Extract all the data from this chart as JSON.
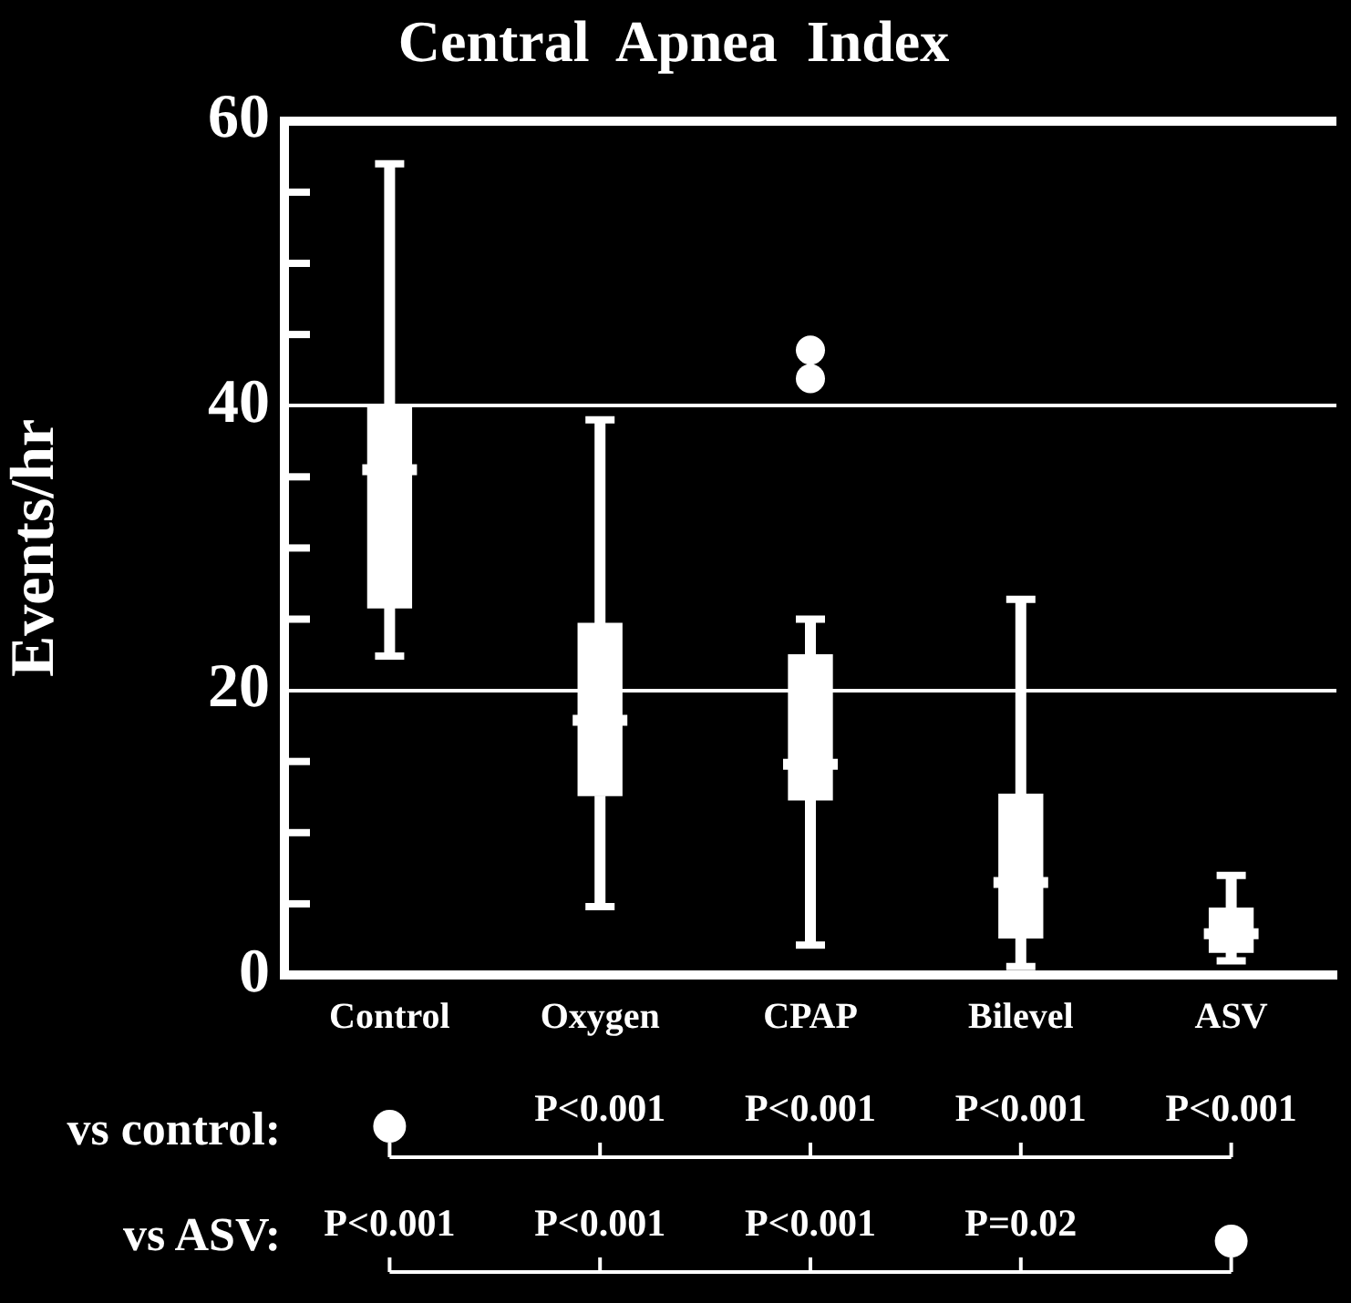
{
  "chart_data": {
    "type": "box",
    "title": "Central  Apnea  Index",
    "ylabel": "Events/hr",
    "color": "#ffffff",
    "categories": [
      "Control",
      "Oxygen",
      "CPAP",
      "Bilevel",
      "ASV"
    ],
    "boxes": [
      {
        "low": 22.4,
        "q1": 25.8,
        "median": 35.5,
        "q3": 40,
        "high": 57
      },
      {
        "low": 4.8,
        "q1": 12.6,
        "median": 17.9,
        "q3": 24.7,
        "high": 39
      },
      {
        "low": 2.1,
        "q1": 12.3,
        "median": 14.8,
        "q3": 22.5,
        "high": 25,
        "outliers": [
          41.9,
          43.9
        ]
      },
      {
        "low": 0.6,
        "q1": 2.6,
        "median": 6.5,
        "q3": 12.7,
        "high": 26.4
      },
      {
        "low": 1,
        "q1": 1.6,
        "median": 2.9,
        "q3": 4.7,
        "high": 7
      }
    ],
    "ylim": [
      0,
      60
    ],
    "yticks": [
      0,
      {
        "value": 5,
        "label": null
      },
      {
        "value": 10,
        "label": null
      },
      {
        "value": 15,
        "label": null
      },
      20,
      {
        "value": 25,
        "label": null
      },
      {
        "value": 30,
        "label": null
      },
      {
        "value": 35,
        "label": null
      },
      40,
      {
        "value": 45,
        "label": null
      },
      {
        "value": 50,
        "label": null
      },
      {
        "value": 55,
        "label": null
      },
      60
    ],
    "grid": "y",
    "annotations": [
      "vs control:",
      {
        "text": "P<0.001",
        "x": "Oxygen"
      },
      {
        "text": "P<0.001",
        "x": "CPAP"
      },
      {
        "text": "P<0.001",
        "x": "Bilevel"
      },
      {
        "text": "P<0.001",
        "x": "ASV"
      },
      "vs ASV:",
      {
        "text": "P<0.001",
        "x": "Control"
      },
      {
        "text": "P<0.001",
        "x": "Oxygen"
      },
      {
        "text": "P<0.001",
        "x": "CPAP"
      },
      {
        "text": "P=0.02",
        "x": "Bilevel"
      }
    ]
  }
}
